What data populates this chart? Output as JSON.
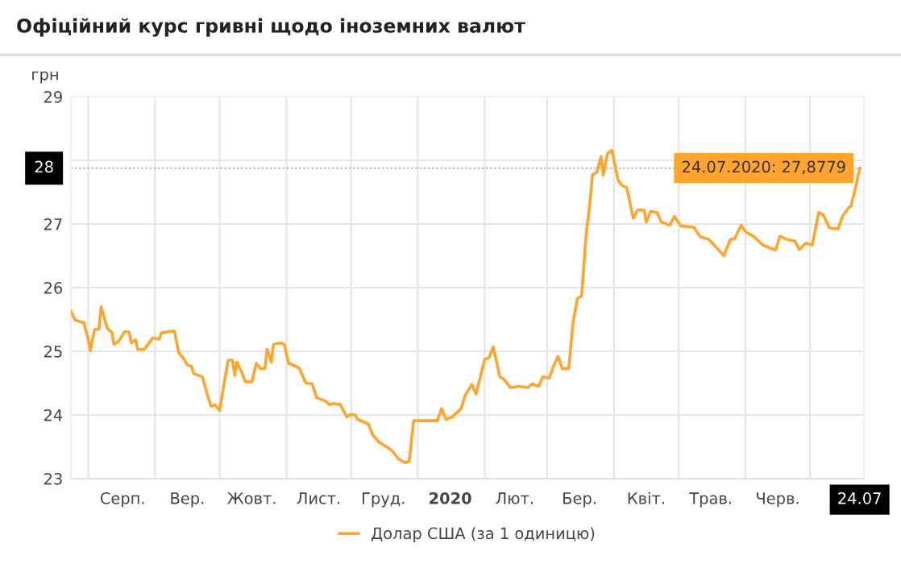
{
  "chart_data": {
    "type": "line",
    "title": "Офіційний курс гривні щодо іноземних валют",
    "ylabel": "грн",
    "xlim": [
      "2019-07-24",
      "2020-07-26"
    ],
    "ylim": [
      23,
      29
    ],
    "yticks": [
      23,
      24,
      25,
      26,
      27,
      {
        "value": 28,
        "label": null
      },
      29
    ],
    "xticks": [
      {
        "value": "2019-08-01",
        "label": null
      },
      {
        "value": "2019-08-17",
        "label": "Серп."
      },
      {
        "value": "2019-09-01",
        "label": null
      },
      {
        "value": "2019-09-16",
        "label": "Вер."
      },
      {
        "value": "2019-10-01",
        "label": null
      },
      {
        "value": "2019-10-16",
        "label": "Жовт."
      },
      {
        "value": "2019-11-01",
        "label": null
      },
      {
        "value": "2019-11-16",
        "label": "Лист."
      },
      {
        "value": "2019-12-01",
        "label": null
      },
      {
        "value": "2019-12-16",
        "label": "Груд."
      },
      {
        "value": "2020-01-01",
        "label": null
      },
      {
        "value": "2020-01-16",
        "label": "2020"
      },
      {
        "value": "2020-02-01",
        "label": null
      },
      {
        "value": "2020-02-15",
        "label": "Лют."
      },
      {
        "value": "2020-03-01",
        "label": null
      },
      {
        "value": "2020-03-16",
        "label": "Бер."
      },
      {
        "value": "2020-04-01",
        "label": null
      },
      {
        "value": "2020-04-16",
        "label": "Квіт."
      },
      {
        "value": "2020-05-01",
        "label": null
      },
      {
        "value": "2020-05-16",
        "label": "Трав."
      },
      {
        "value": "2020-06-01",
        "label": null
      },
      {
        "value": "2020-06-16",
        "label": "Черв."
      },
      {
        "value": "2020-07-01",
        "label": null
      },
      {
        "value": "2020-07-24",
        "label": "24.07"
      }
    ],
    "grid": true,
    "legend": "bottom",
    "marker": "none",
    "line_style": "solid",
    "ref_lines": [
      {
        "axis": "y",
        "value": 27.8779,
        "label": "28",
        "color": "#999999",
        "line_style": "dotted"
      }
    ],
    "annotations": [
      {
        "text": "24.07.2020: 27,8779",
        "x": "2020-07-24",
        "y": 27.8779
      }
    ],
    "series": [
      {
        "name": "Долар США (за 1 одиницю)",
        "color": "#ffa52f",
        "x": [
          "2019-07-24",
          "2019-07-26",
          "2019-07-30",
          "2019-08-01",
          "2019-08-02",
          "2019-08-04",
          "2019-08-06",
          "2019-08-07",
          "2019-08-10",
          "2019-08-12",
          "2019-08-13",
          "2019-08-15",
          "2019-08-18",
          "2019-08-20",
          "2019-08-21",
          "2019-08-23",
          "2019-08-24",
          "2019-08-27",
          "2019-08-31",
          "2019-09-03",
          "2019-09-04",
          "2019-09-08",
          "2019-09-10",
          "2019-09-12",
          "2019-09-14",
          "2019-09-16",
          "2019-09-18",
          "2019-09-19",
          "2019-09-23",
          "2019-09-25",
          "2019-09-27",
          "2019-09-29",
          "2019-10-01",
          "2019-10-03",
          "2019-10-05",
          "2019-10-07",
          "2019-10-08",
          "2019-10-09",
          "2019-10-11",
          "2019-10-13",
          "2019-10-16",
          "2019-10-18",
          "2019-10-20",
          "2019-10-22",
          "2019-10-23",
          "2019-10-25",
          "2019-10-26",
          "2019-10-29",
          "2019-10-31",
          "2019-11-02",
          "2019-11-05",
          "2019-11-07",
          "2019-11-10",
          "2019-11-13",
          "2019-11-15",
          "2019-11-19",
          "2019-11-21",
          "2019-11-23",
          "2019-11-26",
          "2019-11-29",
          "2019-12-01",
          "2019-12-03",
          "2019-12-04",
          "2019-12-09",
          "2019-12-11",
          "2019-12-14",
          "2019-12-17",
          "2019-12-20",
          "2019-12-23",
          "2019-12-26",
          "2019-12-28",
          "2019-12-30",
          "2020-01-04",
          "2020-01-10",
          "2020-01-12",
          "2020-01-14",
          "2020-01-17",
          "2020-01-21",
          "2020-01-23",
          "2020-01-26",
          "2020-01-28",
          "2020-02-01",
          "2020-02-03",
          "2020-02-05",
          "2020-02-08",
          "2020-02-10",
          "2020-02-13",
          "2020-02-17",
          "2020-02-21",
          "2020-02-23",
          "2020-02-26",
          "2020-02-28",
          "2020-03-02",
          "2020-03-04",
          "2020-03-06",
          "2020-03-08",
          "2020-03-11",
          "2020-03-13",
          "2020-03-15",
          "2020-03-17",
          "2020-03-19",
          "2020-03-21",
          "2020-03-22",
          "2020-03-24",
          "2020-03-26",
          "2020-03-27",
          "2020-03-29",
          "2020-03-31",
          "2020-04-03",
          "2020-04-05",
          "2020-04-07",
          "2020-04-09",
          "2020-04-10",
          "2020-04-12",
          "2020-04-15",
          "2020-04-16",
          "2020-04-18",
          "2020-04-21",
          "2020-04-23",
          "2020-04-27",
          "2020-04-29",
          "2020-05-02",
          "2020-05-08",
          "2020-05-11",
          "2020-05-15",
          "2020-05-18",
          "2020-05-22",
          "2020-05-25",
          "2020-05-27",
          "2020-05-30",
          "2020-06-01",
          "2020-06-05",
          "2020-06-09",
          "2020-06-12",
          "2020-06-15",
          "2020-06-17",
          "2020-06-20",
          "2020-06-24",
          "2020-06-26",
          "2020-06-29",
          "2020-07-02",
          "2020-07-05",
          "2020-07-07",
          "2020-07-10",
          "2020-07-14",
          "2020-07-16",
          "2020-07-19",
          "2020-07-20",
          "2020-07-22",
          "2020-07-24"
        ],
        "values": [
          25.63,
          25.49,
          25.45,
          25.19,
          25.01,
          25.34,
          25.35,
          25.7,
          25.35,
          25.3,
          25.11,
          25.15,
          25.31,
          25.3,
          25.13,
          25.18,
          25.03,
          25.03,
          25.21,
          25.19,
          25.29,
          25.31,
          25.32,
          24.98,
          24.9,
          24.79,
          24.76,
          24.65,
          24.6,
          24.35,
          24.14,
          24.16,
          24.07,
          24.48,
          24.86,
          24.86,
          24.62,
          24.83,
          24.69,
          24.52,
          24.52,
          24.81,
          24.73,
          24.73,
          25.03,
          24.83,
          25.11,
          25.13,
          25.11,
          24.81,
          24.77,
          24.73,
          24.5,
          24.49,
          24.27,
          24.22,
          24.16,
          24.18,
          24.16,
          23.97,
          24.01,
          24.0,
          23.93,
          23.86,
          23.69,
          23.57,
          23.51,
          23.44,
          23.31,
          23.25,
          23.27,
          23.91,
          23.91,
          23.91,
          24.1,
          23.93,
          23.97,
          24.1,
          24.31,
          24.48,
          24.33,
          24.87,
          24.9,
          25.07,
          24.6,
          24.56,
          24.43,
          24.45,
          24.43,
          24.49,
          24.45,
          24.6,
          24.58,
          24.77,
          24.92,
          24.73,
          24.73,
          25.45,
          25.83,
          25.87,
          26.8,
          27.39,
          27.77,
          27.81,
          28.06,
          27.77,
          28.11,
          28.16,
          27.68,
          27.6,
          27.57,
          27.24,
          27.09,
          27.22,
          27.22,
          27.03,
          27.2,
          27.18,
          27.03,
          26.98,
          27.12,
          26.97,
          26.95,
          26.8,
          26.76,
          26.65,
          26.5,
          26.76,
          26.77,
          26.98,
          26.88,
          26.8,
          26.67,
          26.63,
          26.59,
          26.81,
          26.76,
          26.73,
          26.6,
          26.7,
          26.67,
          27.18,
          27.15,
          26.94,
          26.92,
          27.12,
          27.26,
          27.28,
          27.56,
          27.8779
        ]
      }
    ]
  }
}
